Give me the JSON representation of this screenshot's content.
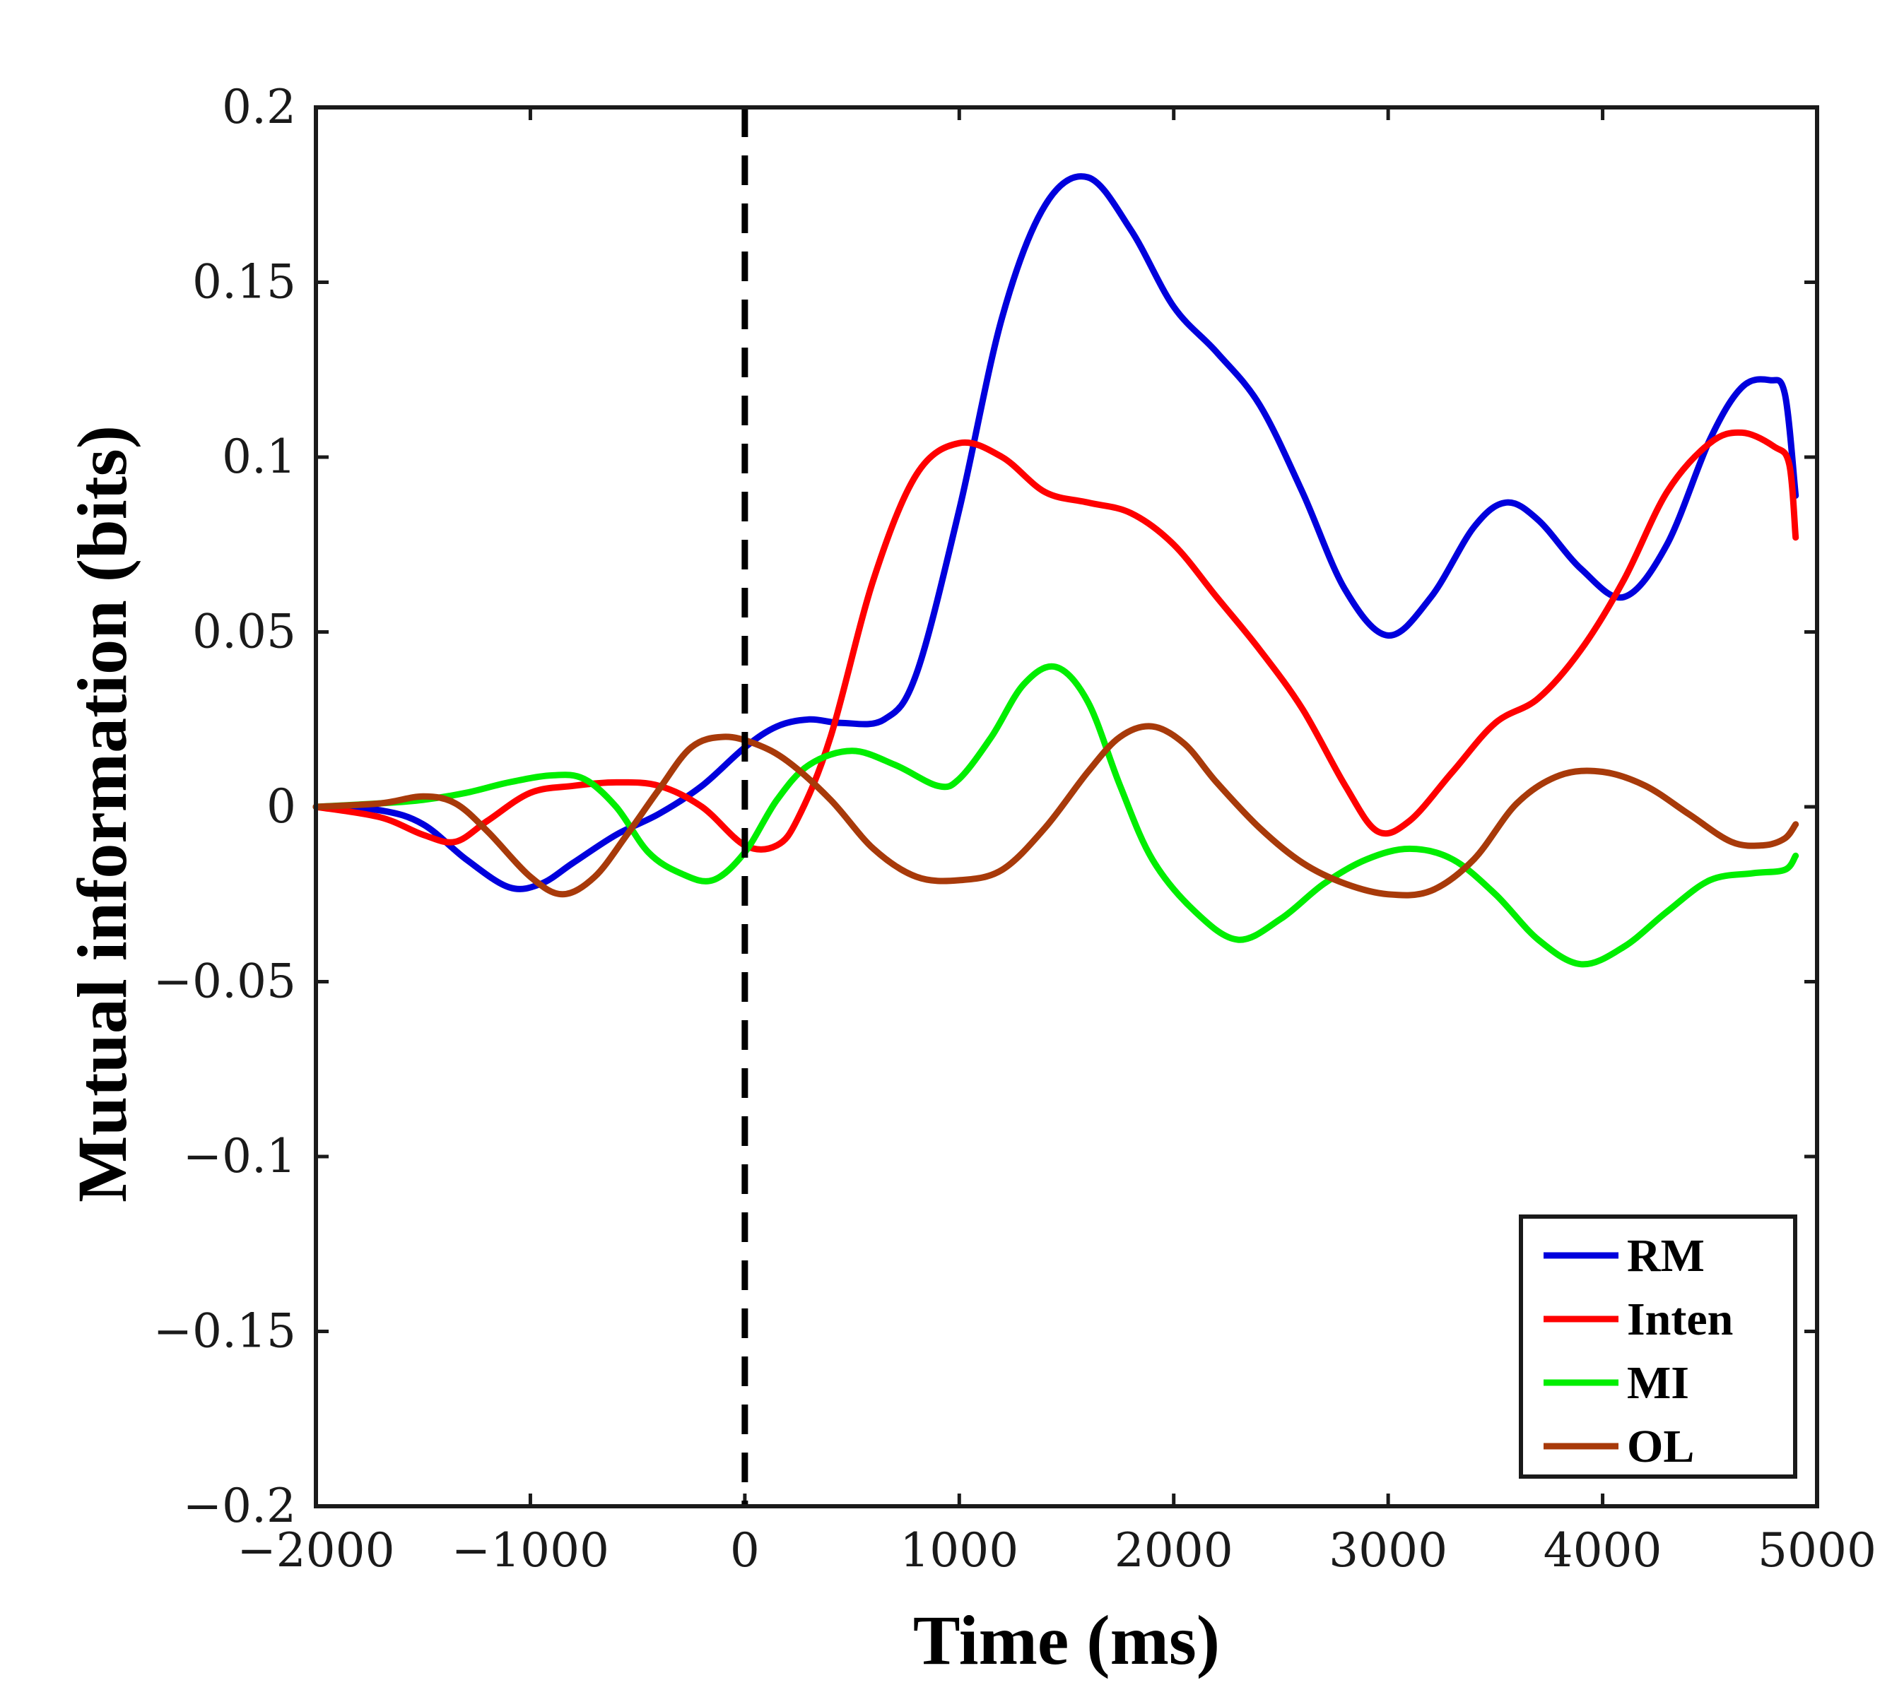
{
  "chart_data": {
    "type": "line",
    "title": "",
    "xlabel": "Time (ms)",
    "ylabel": "Mutual information (bits)",
    "xlim": [
      -2000,
      5000
    ],
    "ylim": [
      -0.2,
      0.2
    ],
    "xticks": [
      -2000,
      -1000,
      0,
      1000,
      2000,
      3000,
      4000,
      5000
    ],
    "xtick_labels": [
      "−2000",
      "−1000",
      "0",
      "1000",
      "2000",
      "3000",
      "4000",
      "5000"
    ],
    "yticks": [
      0.2,
      0.15,
      0.1,
      0.05,
      0,
      -0.05,
      -0.1,
      -0.15,
      -0.2
    ],
    "ytick_labels": [
      "0.2",
      "0.15",
      "0.1",
      "0.05",
      "0",
      "−0.05",
      "−0.1",
      "−0.15",
      "−0.2"
    ],
    "reference_line": {
      "x": 0,
      "style": "dashed",
      "color": "#000000"
    },
    "legend_position": "bottom-right",
    "series": [
      {
        "name": "RM",
        "color": "#0000dd",
        "points": [
          [
            -2000,
            0
          ],
          [
            -1700,
            -0.001
          ],
          [
            -1500,
            -0.005
          ],
          [
            -1300,
            -0.015
          ],
          [
            -1100,
            -0.023
          ],
          [
            -950,
            -0.022
          ],
          [
            -800,
            -0.016
          ],
          [
            -600,
            -0.008
          ],
          [
            -400,
            -0.002
          ],
          [
            -200,
            0.006
          ],
          [
            0,
            0.017
          ],
          [
            150,
            0.023
          ],
          [
            300,
            0.025
          ],
          [
            450,
            0.024
          ],
          [
            650,
            0.025
          ],
          [
            800,
            0.038
          ],
          [
            1000,
            0.085
          ],
          [
            1200,
            0.14
          ],
          [
            1400,
            0.172
          ],
          [
            1600,
            0.18
          ],
          [
            1800,
            0.165
          ],
          [
            2000,
            0.143
          ],
          [
            2200,
            0.13
          ],
          [
            2400,
            0.115
          ],
          [
            2600,
            0.09
          ],
          [
            2800,
            0.062
          ],
          [
            3000,
            0.049
          ],
          [
            3200,
            0.06
          ],
          [
            3400,
            0.08
          ],
          [
            3550,
            0.087
          ],
          [
            3700,
            0.082
          ],
          [
            3900,
            0.068
          ],
          [
            4100,
            0.06
          ],
          [
            4300,
            0.075
          ],
          [
            4500,
            0.105
          ],
          [
            4650,
            0.12
          ],
          [
            4780,
            0.122
          ],
          [
            4850,
            0.118
          ],
          [
            4900,
            0.089
          ]
        ]
      },
      {
        "name": "Inten",
        "color": "#ff0000",
        "points": [
          [
            -2000,
            0
          ],
          [
            -1700,
            -0.003
          ],
          [
            -1500,
            -0.008
          ],
          [
            -1350,
            -0.01
          ],
          [
            -1200,
            -0.004
          ],
          [
            -1000,
            0.004
          ],
          [
            -800,
            0.006
          ],
          [
            -600,
            0.007
          ],
          [
            -400,
            0.006
          ],
          [
            -200,
            0
          ],
          [
            0,
            -0.011
          ],
          [
            150,
            -0.011
          ],
          [
            250,
            -0.003
          ],
          [
            400,
            0.02
          ],
          [
            600,
            0.065
          ],
          [
            800,
            0.095
          ],
          [
            1000,
            0.104
          ],
          [
            1200,
            0.1
          ],
          [
            1400,
            0.09
          ],
          [
            1600,
            0.087
          ],
          [
            1800,
            0.084
          ],
          [
            2000,
            0.075
          ],
          [
            2200,
            0.06
          ],
          [
            2400,
            0.045
          ],
          [
            2600,
            0.028
          ],
          [
            2800,
            0.006
          ],
          [
            2950,
            -0.007
          ],
          [
            3100,
            -0.004
          ],
          [
            3300,
            0.01
          ],
          [
            3500,
            0.024
          ],
          [
            3700,
            0.031
          ],
          [
            3900,
            0.045
          ],
          [
            4100,
            0.065
          ],
          [
            4300,
            0.09
          ],
          [
            4500,
            0.104
          ],
          [
            4650,
            0.107
          ],
          [
            4800,
            0.103
          ],
          [
            4870,
            0.098
          ],
          [
            4900,
            0.077
          ]
        ]
      },
      {
        "name": "MI",
        "color": "#00ee00",
        "points": [
          [
            -2000,
            0
          ],
          [
            -1700,
            0.001
          ],
          [
            -1500,
            0.002
          ],
          [
            -1300,
            0.004
          ],
          [
            -1100,
            0.007
          ],
          [
            -900,
            0.009
          ],
          [
            -750,
            0.008
          ],
          [
            -600,
            0
          ],
          [
            -450,
            -0.013
          ],
          [
            -300,
            -0.019
          ],
          [
            -150,
            -0.021
          ],
          [
            0,
            -0.013
          ],
          [
            150,
            0.002
          ],
          [
            300,
            0.012
          ],
          [
            500,
            0.016
          ],
          [
            700,
            0.012
          ],
          [
            900,
            0.006
          ],
          [
            1000,
            0.008
          ],
          [
            1150,
            0.02
          ],
          [
            1300,
            0.035
          ],
          [
            1450,
            0.04
          ],
          [
            1600,
            0.03
          ],
          [
            1750,
            0.006
          ],
          [
            1900,
            -0.015
          ],
          [
            2100,
            -0.03
          ],
          [
            2300,
            -0.038
          ],
          [
            2500,
            -0.032
          ],
          [
            2700,
            -0.022
          ],
          [
            2900,
            -0.015
          ],
          [
            3100,
            -0.012
          ],
          [
            3300,
            -0.015
          ],
          [
            3500,
            -0.025
          ],
          [
            3700,
            -0.038
          ],
          [
            3900,
            -0.045
          ],
          [
            4100,
            -0.04
          ],
          [
            4300,
            -0.03
          ],
          [
            4500,
            -0.021
          ],
          [
            4700,
            -0.019
          ],
          [
            4850,
            -0.018
          ],
          [
            4900,
            -0.014
          ]
        ]
      },
      {
        "name": "OL",
        "color": "#a83a0a",
        "points": [
          [
            -2000,
            0
          ],
          [
            -1700,
            0.001
          ],
          [
            -1500,
            0.003
          ],
          [
            -1350,
            0.001
          ],
          [
            -1200,
            -0.007
          ],
          [
            -1000,
            -0.02
          ],
          [
            -850,
            -0.025
          ],
          [
            -700,
            -0.02
          ],
          [
            -550,
            -0.008
          ],
          [
            -400,
            0.005
          ],
          [
            -250,
            0.017
          ],
          [
            -100,
            0.02
          ],
          [
            50,
            0.018
          ],
          [
            200,
            0.013
          ],
          [
            400,
            0.002
          ],
          [
            600,
            -0.012
          ],
          [
            800,
            -0.02
          ],
          [
            1000,
            -0.021
          ],
          [
            1200,
            -0.018
          ],
          [
            1400,
            -0.006
          ],
          [
            1600,
            0.01
          ],
          [
            1750,
            0.02
          ],
          [
            1900,
            0.023
          ],
          [
            2050,
            0.018
          ],
          [
            2200,
            0.007
          ],
          [
            2400,
            -0.006
          ],
          [
            2600,
            -0.016
          ],
          [
            2800,
            -0.022
          ],
          [
            3000,
            -0.025
          ],
          [
            3200,
            -0.024
          ],
          [
            3400,
            -0.015
          ],
          [
            3600,
            0.001
          ],
          [
            3800,
            0.009
          ],
          [
            4000,
            0.01
          ],
          [
            4200,
            0.006
          ],
          [
            4400,
            -0.002
          ],
          [
            4600,
            -0.01
          ],
          [
            4750,
            -0.011
          ],
          [
            4850,
            -0.009
          ],
          [
            4900,
            -0.005
          ]
        ]
      }
    ]
  }
}
